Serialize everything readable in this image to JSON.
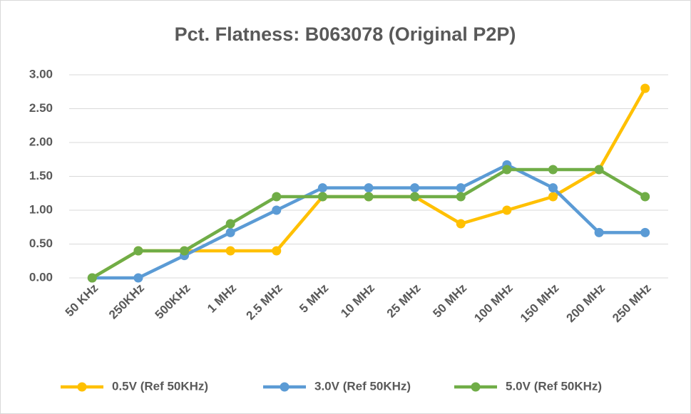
{
  "chart_data": {
    "type": "line",
    "title": "Pct. Flatness: B063078 (Original P2P)",
    "categories": [
      "50 KHz",
      "250KHz",
      "500KHz",
      "1 MHz",
      "2.5 MHz",
      "5 MHz",
      "10 MHz",
      "25 MHz",
      "50 MHz",
      "100 MHz",
      "150 MHz",
      "200 MHz",
      "250 MHz"
    ],
    "series": [
      {
        "name": "0.5V (Ref 50KHz)",
        "color": "#ffc000",
        "values": [
          0,
          0.4,
          0.4,
          0.4,
          0.4,
          1.2,
          1.2,
          1.2,
          0.8,
          1.0,
          1.2,
          1.6,
          2.8
        ]
      },
      {
        "name": "3.0V (Ref 50KHz)",
        "color": "#5b9bd5",
        "values": [
          0,
          0,
          0.33,
          0.67,
          1.0,
          1.33,
          1.33,
          1.33,
          1.33,
          1.67,
          1.33,
          0.67,
          0.67
        ]
      },
      {
        "name": "5.0V (Ref 50KHz)",
        "color": "#70ad47",
        "values": [
          0,
          0.4,
          0.4,
          0.8,
          1.2,
          1.2,
          1.2,
          1.2,
          1.2,
          1.6,
          1.6,
          1.6,
          1.2
        ]
      }
    ],
    "ylim": [
      0,
      3
    ],
    "yticks": [
      {
        "value": 0,
        "label": "0.00"
      },
      {
        "value": 0.5,
        "label": "0.50"
      },
      {
        "value": 1,
        "label": "1.00"
      },
      {
        "value": 1.5,
        "label": "1.50"
      },
      {
        "value": 2,
        "label": "2.00"
      },
      {
        "value": 2.5,
        "label": "2.50"
      },
      {
        "value": 3,
        "label": "3.00"
      }
    ],
    "grid": true,
    "legend": "bottom"
  }
}
